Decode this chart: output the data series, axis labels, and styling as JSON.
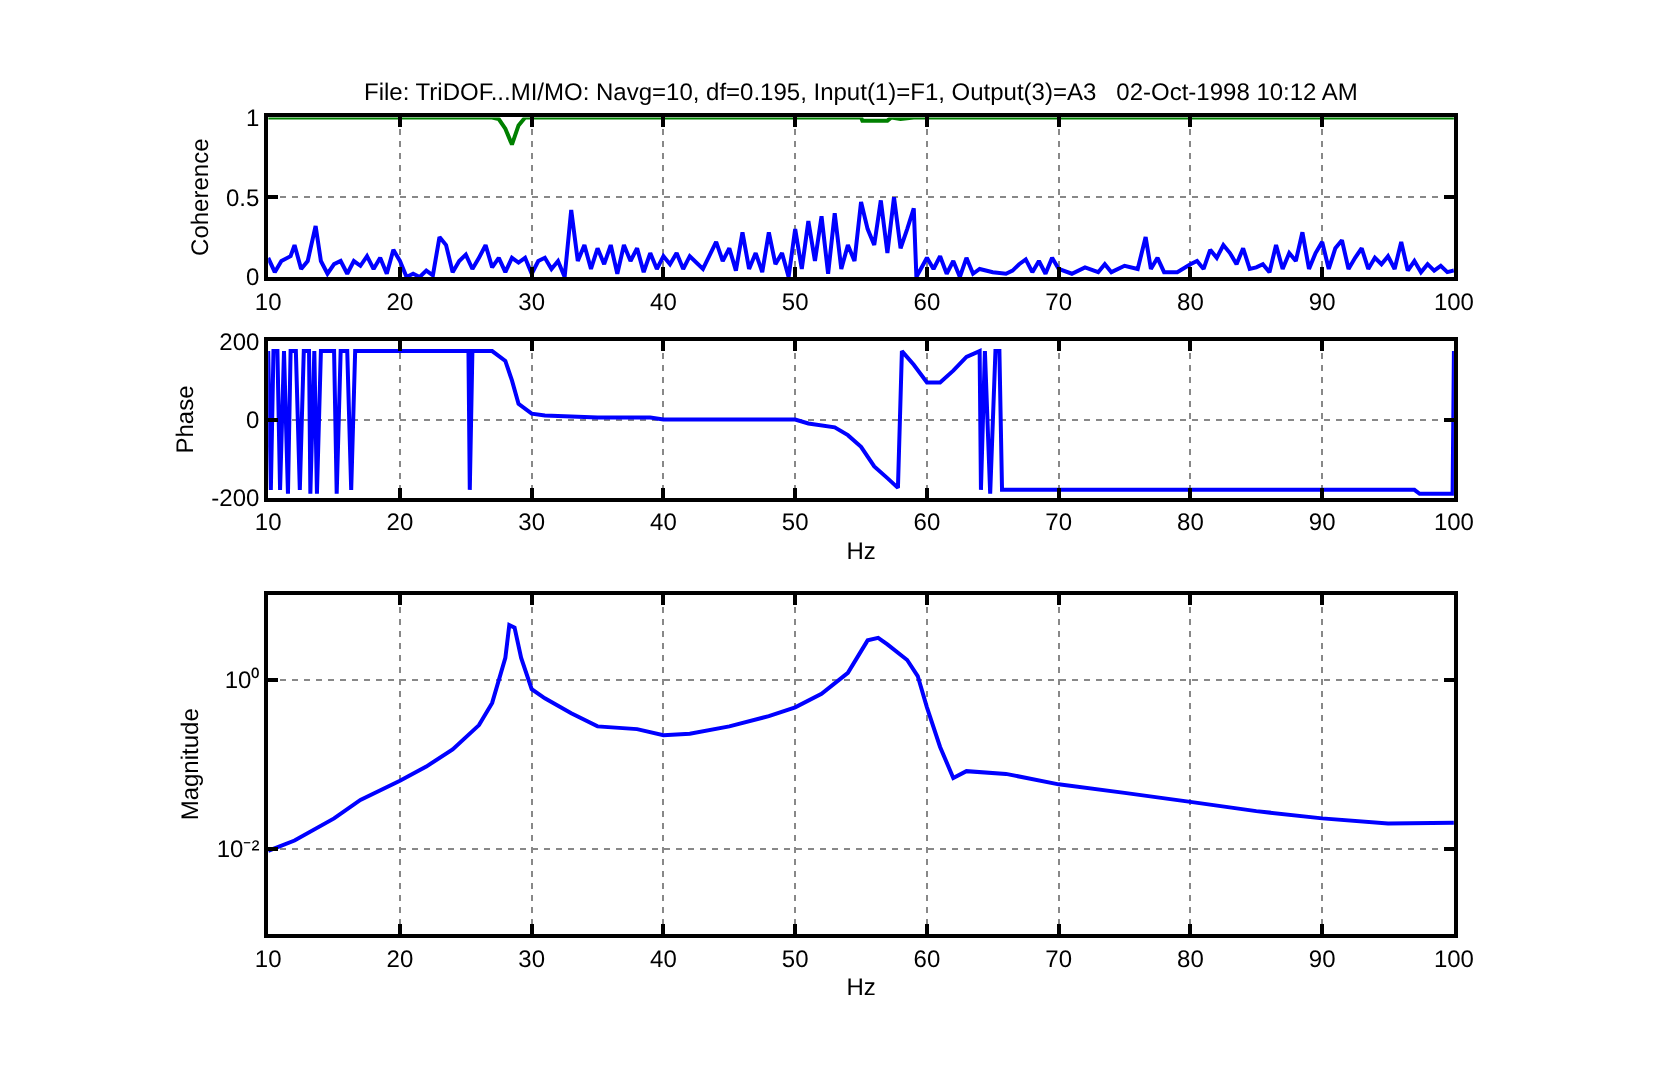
{
  "chart_data": [
    {
      "type": "line",
      "title": "File: TriDOF...MI/MO: Navg=10, df=0.195, Input(1)=F1, Output(3)=A3   02-Oct-1998 10:12 AM",
      "ylabel": "Coherence",
      "xlim": [
        10,
        100
      ],
      "xticks": [
        10,
        20,
        30,
        40,
        50,
        60,
        70,
        80,
        90,
        100
      ],
      "ylim": [
        0,
        1
      ],
      "yticks": [
        0,
        0.5,
        1
      ],
      "grid": true,
      "line_style": "solid",
      "series": [
        {
          "color": "#008000",
          "x": [
            10,
            27,
            27.5,
            28,
            28.5,
            29,
            29.5,
            55,
            55.1,
            57,
            57.3,
            58,
            59,
            100
          ],
          "values": [
            1,
            1,
            0.99,
            0.93,
            0.83,
            0.95,
            1,
            1,
            0.98,
            0.98,
            1,
            0.99,
            1,
            1
          ]
        },
        {
          "color": "#0000ff",
          "x": [
            10,
            10.5,
            11,
            11.7,
            12,
            12.5,
            13,
            13.6,
            14,
            14.5,
            15,
            15.5,
            16,
            16.5,
            17,
            17.5,
            18,
            18.5,
            19,
            19.5,
            20,
            20.5,
            21,
            21.5,
            22,
            22.5,
            23,
            23.5,
            24,
            24.5,
            25,
            25.5,
            26,
            26.5,
            27,
            27.5,
            28,
            28.5,
            29,
            29.5,
            30,
            30.5,
            31,
            31.5,
            32,
            32.5,
            33,
            33.5,
            34,
            34.5,
            35,
            35.5,
            36,
            36.5,
            37,
            37.5,
            38,
            38.5,
            39,
            39.5,
            40,
            40.5,
            41,
            41.5,
            42,
            43,
            44,
            44.5,
            45,
            45.5,
            46,
            46.5,
            47,
            47.5,
            48,
            48.5,
            49,
            49.5,
            50,
            50.5,
            51,
            51.5,
            52,
            52.5,
            53,
            53.5,
            54,
            54.5,
            55,
            55.5,
            56,
            56.5,
            57,
            57.5,
            58,
            58.5,
            59,
            59.2,
            60,
            60.5,
            61,
            61.5,
            62,
            62.5,
            63,
            63.5,
            64,
            65,
            66,
            66.5,
            67,
            67.5,
            68,
            68.5,
            69,
            69.5,
            70,
            71,
            72,
            73,
            73.5,
            74,
            75,
            76,
            76.6,
            77,
            77.5,
            78,
            79,
            80,
            80.5,
            81,
            81.5,
            82,
            82.5,
            83,
            83.5,
            84,
            84.5,
            85,
            85.5,
            86,
            86.5,
            87,
            87.5,
            88,
            88.5,
            89,
            89.5,
            90,
            90.5,
            91,
            91.5,
            92,
            92.5,
            93,
            93.5,
            94,
            94.5,
            95,
            95.5,
            96,
            96.5,
            97,
            97.5,
            98,
            98.5,
            99,
            99.5,
            100
          ],
          "values": [
            0.12,
            0.03,
            0.1,
            0.13,
            0.2,
            0.05,
            0.1,
            0.32,
            0.1,
            0.02,
            0.08,
            0.1,
            0.02,
            0.1,
            0.07,
            0.13,
            0.05,
            0.12,
            0.02,
            0.17,
            0.1,
            0,
            0.02,
            0,
            0.04,
            0.01,
            0.25,
            0.2,
            0.03,
            0.1,
            0.14,
            0.05,
            0.12,
            0.2,
            0.06,
            0.12,
            0.03,
            0.12,
            0.09,
            0.12,
            0.02,
            0.1,
            0.12,
            0.05,
            0.1,
            0,
            0.42,
            0.1,
            0.2,
            0.05,
            0.18,
            0.08,
            0.2,
            0.02,
            0.2,
            0.1,
            0.18,
            0.03,
            0.15,
            0.05,
            0.13,
            0.08,
            0.15,
            0.05,
            0.13,
            0.05,
            0.22,
            0.1,
            0.18,
            0.04,
            0.28,
            0.05,
            0.15,
            0.03,
            0.28,
            0.08,
            0.15,
            0,
            0.3,
            0.05,
            0.35,
            0.1,
            0.38,
            0.02,
            0.4,
            0.05,
            0.2,
            0.1,
            0.47,
            0.3,
            0.2,
            0.48,
            0.15,
            0.5,
            0.18,
            0.3,
            0.43,
            0,
            0.12,
            0.05,
            0.13,
            0.02,
            0.1,
            0,
            0.12,
            0.02,
            0.05,
            0.03,
            0.02,
            0.04,
            0.08,
            0.11,
            0.03,
            0.1,
            0.02,
            0.12,
            0.05,
            0.02,
            0.06,
            0.03,
            0.08,
            0.03,
            0.07,
            0.05,
            0.25,
            0.05,
            0.12,
            0.03,
            0.03,
            0.08,
            0.1,
            0.05,
            0.17,
            0.12,
            0.2,
            0.15,
            0.08,
            0.18,
            0.05,
            0.06,
            0.08,
            0.03,
            0.2,
            0.05,
            0.15,
            0.1,
            0.28,
            0.05,
            0.15,
            0.22,
            0.05,
            0.18,
            0.23,
            0.05,
            0.12,
            0.18,
            0.05,
            0.12,
            0.08,
            0.13,
            0.05,
            0.22,
            0.04,
            0.1,
            0.03,
            0.08,
            0.04,
            0.07,
            0.03,
            0.04
          ]
        }
      ]
    },
    {
      "type": "line",
      "xlabel": "Hz",
      "ylabel": "Phase",
      "xlim": [
        10,
        100
      ],
      "xticks": [
        10,
        20,
        30,
        40,
        50,
        60,
        70,
        80,
        90,
        100
      ],
      "ylim": [
        -200,
        200
      ],
      "yticks": [
        -200,
        0,
        200
      ],
      "grid": true,
      "line_style": "solid",
      "series": [
        {
          "color": "#0000ff",
          "x": [
            10,
            10.2,
            10.4,
            10.7,
            10.9,
            11.2,
            11.5,
            11.7,
            12.1,
            12.4,
            12.7,
            13.1,
            13.2,
            13.5,
            13.7,
            14,
            15,
            15.2,
            15.5,
            16,
            16.3,
            16.6,
            25.2,
            25.3,
            25.5,
            27,
            28,
            28.5,
            29,
            30,
            31,
            35,
            39,
            40,
            50,
            51,
            53,
            54,
            55,
            56,
            57,
            57.8,
            58.1,
            59,
            60,
            61,
            62,
            63,
            64,
            64.1,
            64.4,
            64.8,
            65.2,
            65.5,
            65.7,
            97,
            97.4,
            99.9,
            100
          ],
          "values": [
            175,
            -180,
            175,
            175,
            -180,
            175,
            -190,
            175,
            175,
            -180,
            175,
            175,
            -190,
            175,
            -190,
            175,
            175,
            -190,
            175,
            175,
            -180,
            175,
            175,
            -180,
            175,
            175,
            150,
            100,
            40,
            15,
            10,
            5,
            5,
            0,
            0,
            -10,
            -20,
            -40,
            -70,
            -120,
            -150,
            -175,
            175,
            140,
            95,
            95,
            125,
            160,
            175,
            -180,
            175,
            -190,
            175,
            175,
            -180,
            -180,
            -190,
            -190,
            175
          ]
        }
      ]
    },
    {
      "type": "line",
      "xlabel": "Hz",
      "ylabel": "Magnitude",
      "log": "y",
      "xlim": [
        10,
        100
      ],
      "xticks": [
        10,
        20,
        30,
        40,
        50,
        60,
        70,
        80,
        90,
        100
      ],
      "ylim": [
        0.001,
        10
      ],
      "yticks": [
        {
          "value": 0.01,
          "label": "10⁻²"
        },
        {
          "value": 1,
          "label": "10⁰"
        }
      ],
      "grid": true,
      "line_style": "solid",
      "series": [
        {
          "color": "#0000ff",
          "x": [
            10,
            12,
            15,
            17,
            20,
            22,
            24,
            26,
            27,
            28,
            28.3,
            28.7,
            29.2,
            30,
            31,
            33,
            35,
            38,
            40,
            42,
            45,
            48,
            50,
            52,
            54,
            55.5,
            56.3,
            57,
            58.5,
            59.3,
            60,
            61,
            62,
            63,
            66,
            70,
            75,
            80,
            85,
            90,
            95,
            100
          ],
          "values": [
            0.0095,
            0.0126,
            0.023,
            0.038,
            0.064,
            0.094,
            0.15,
            0.29,
            0.53,
            1.8,
            4.4,
            4.1,
            1.8,
            0.77,
            0.6,
            0.4,
            0.28,
            0.26,
            0.22,
            0.23,
            0.28,
            0.37,
            0.47,
            0.68,
            1.2,
            2.9,
            3.1,
            2.6,
            1.7,
            1.1,
            0.47,
            0.16,
            0.069,
            0.083,
            0.077,
            0.058,
            0.046,
            0.036,
            0.028,
            0.023,
            0.02,
            0.0204
          ]
        }
      ]
    }
  ]
}
